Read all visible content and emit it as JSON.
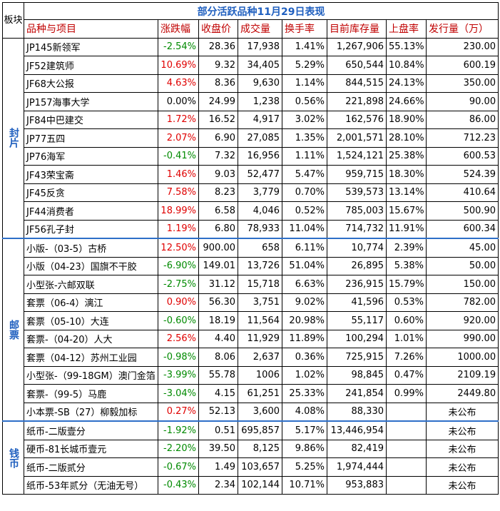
{
  "title": "部分活跃品种11月29日表现",
  "corner_label": "板块",
  "headers": [
    "品种与项目",
    "涨跌幅",
    "收盘价",
    "成交量",
    "换手率",
    "目前库存量",
    "上盘率",
    "发行量（万）"
  ],
  "groups": [
    {
      "label": "封片",
      "rows": [
        [
          "JP145新领军",
          "-2.54%",
          "28.36",
          "17,938",
          "1.41%",
          "1,267,906",
          "55.13%",
          "230.00"
        ],
        [
          "JF52建筑师",
          "10.69%",
          "9.32",
          "34,405",
          "5.29%",
          "650,544",
          "10.84%",
          "600.19"
        ],
        [
          "JF68大公报",
          "4.63%",
          "8.36",
          "9,630",
          "1.14%",
          "844,515",
          "24.13%",
          "350.00"
        ],
        [
          "JP157海事大学",
          "0.00%",
          "24.99",
          "1,238",
          "0.56%",
          "221,898",
          "24.66%",
          "90.00"
        ],
        [
          "JF84中巴建交",
          "1.72%",
          "16.52",
          "4,917",
          "3.02%",
          "162,576",
          "18.90%",
          "86.00"
        ],
        [
          "JP77五四",
          "2.07%",
          "6.90",
          "27,085",
          "1.35%",
          "2,001,571",
          "28.10%",
          "712.23"
        ],
        [
          "JP76海军",
          "-0.41%",
          "7.32",
          "16,956",
          "1.11%",
          "1,524,121",
          "25.38%",
          "600.53"
        ],
        [
          "JF43荣宝斋",
          "1.46%",
          "9.03",
          "52,477",
          "5.47%",
          "959,715",
          "18.30%",
          "524.39"
        ],
        [
          "JF45反贪",
          "7.58%",
          "8.23",
          "3,779",
          "0.70%",
          "539,573",
          "13.14%",
          "410.64"
        ],
        [
          "JF44消费者",
          "18.99%",
          "6.58",
          "4,046",
          "0.52%",
          "785,003",
          "15.67%",
          "500.90"
        ],
        [
          "JF56孔子封",
          "1.19%",
          "6.80",
          "78,933",
          "11.04%",
          "714,732",
          "11.91%",
          "600.34"
        ]
      ]
    },
    {
      "label": "邮票",
      "rows": [
        [
          "小版-（03-5）古桥",
          "12.50%",
          "900.00",
          "658",
          "6.11%",
          "10,774",
          "2.39%",
          "45.00"
        ],
        [
          "小版（04-23）国旗不干胶",
          "-6.90%",
          "149.01",
          "13,726",
          "51.04%",
          "26,895",
          "5.38%",
          "50.00"
        ],
        [
          "小型张-六邮双联",
          "-2.75%",
          "31.12",
          "15,718",
          "6.63%",
          "236,915",
          "15.79%",
          "150.00"
        ],
        [
          "套票（06-4）漓江",
          "0.90%",
          "56.30",
          "3,751",
          "9.02%",
          "41,596",
          "0.53%",
          "782.00"
        ],
        [
          "套票（05-10）大连",
          "-0.60%",
          "18.19",
          "11,564",
          "20.98%",
          "55,117",
          "0.60%",
          "920.00"
        ],
        [
          "套票-（04-20）人大",
          "2.56%",
          "4.40",
          "11,929",
          "11.89%",
          "100,294",
          "1.01%",
          "990.00"
        ],
        [
          "套票（04-12）苏州工业园",
          "-0.98%",
          "8.06",
          "2,637",
          "0.36%",
          "725,915",
          "7.26%",
          "1000.00"
        ],
        [
          "小型张-（99-18GM）澳门金箔",
          "-3.99%",
          "55.78",
          "1006",
          "1.02%",
          "98,845",
          "0.47%",
          "2109.19"
        ],
        [
          "套票-（99-5）马鹿",
          "-3.04%",
          "4.15",
          "61,251",
          "25.33%",
          "241,854",
          "0.99%",
          "2449.80"
        ],
        [
          "小本票-SB（27）柳毅加标",
          "0.27%",
          "52.13",
          "3,600",
          "4.08%",
          "88,330",
          "",
          "未公布"
        ]
      ]
    },
    {
      "label": "钱币",
      "rows": [
        [
          "纸币-二版壹分",
          "-1.92%",
          "0.51",
          "695,857",
          "5.17%",
          "13,446,954",
          "",
          "未公布"
        ],
        [
          "硬币-81长城币壹元",
          "-2.20%",
          "39.50",
          "8,125",
          "9.86%",
          "82,419",
          "",
          "未公布"
        ],
        [
          "纸币-二版贰分",
          "-0.67%",
          "1.49",
          "103,657",
          "5.25%",
          "1,974,444",
          "",
          "未公布"
        ],
        [
          "纸币-53年贰分（无油无号）",
          "-0.43%",
          "2.34",
          "102,144",
          "10.71%",
          "953,883",
          "",
          "未公布"
        ]
      ]
    }
  ]
}
